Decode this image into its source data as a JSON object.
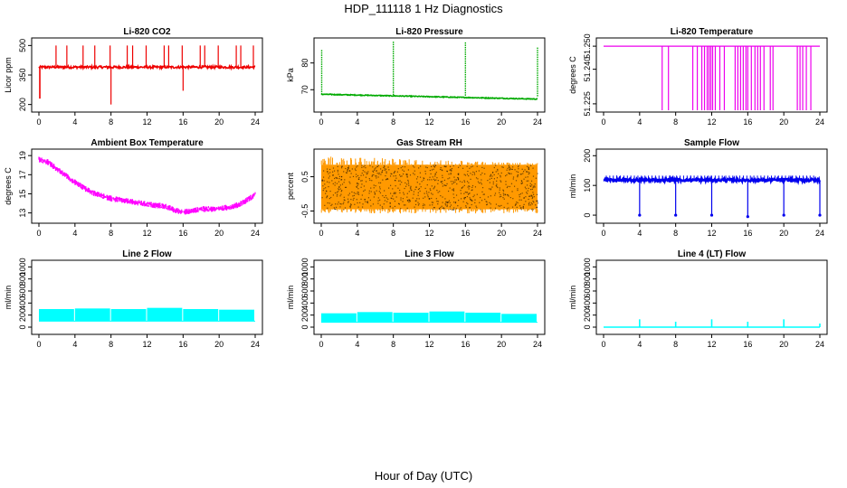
{
  "title": "HDP_111118  1 Hz Diagnostics",
  "xlabel": "Hour of Day (UTC)",
  "chart_data": [
    {
      "type": "line",
      "title": "Li-820 CO2",
      "ylabel": "Licor ppm",
      "color": "#ee0000",
      "xlim": [
        0,
        24
      ],
      "ylim": [
        180,
        520
      ],
      "xticks": [
        0,
        4,
        8,
        12,
        16,
        20,
        24
      ],
      "yticks": [
        200,
        350,
        500
      ],
      "baseline": 390,
      "noise": 6,
      "spikes": [
        [
          1.9,
          500
        ],
        [
          3.1,
          500
        ],
        [
          4.9,
          500
        ],
        [
          6.2,
          500
        ],
        [
          7.9,
          500
        ],
        [
          9.8,
          500
        ],
        [
          10.4,
          500
        ],
        [
          11.9,
          500
        ],
        [
          13.9,
          500
        ],
        [
          14.4,
          500
        ],
        [
          15.9,
          500
        ],
        [
          17.9,
          500
        ],
        [
          18.4,
          500
        ],
        [
          19.9,
          500
        ],
        [
          21.9,
          500
        ],
        [
          22.4,
          500
        ],
        [
          23.8,
          500
        ],
        [
          8.0,
          200
        ],
        [
          16.0,
          270
        ]
      ],
      "start_dip": [
        0.1,
        230
      ]
    },
    {
      "type": "line",
      "title": "Li-820 Pressure",
      "ylabel": "kPa",
      "color": "#00aa00",
      "xlim": [
        0,
        24
      ],
      "ylim": [
        63,
        88
      ],
      "xticks": [
        0,
        4,
        8,
        12,
        16,
        20,
        24
      ],
      "yticks": [
        70,
        80
      ],
      "start": 68.3,
      "end": 66.5,
      "noise": 0.15,
      "spikes": [
        [
          0.05,
          85
        ],
        [
          8.0,
          88
        ],
        [
          16.0,
          88
        ],
        [
          24.0,
          86
        ]
      ]
    },
    {
      "type": "line",
      "title": "Li-820 Temperature",
      "ylabel": "degrees C",
      "color": "#ee00ee",
      "xlim": [
        0,
        24
      ],
      "ylim": [
        51.223,
        51.252
      ],
      "xticks": [
        0,
        4,
        8,
        12,
        16,
        20,
        24
      ],
      "yticks": [
        51.225,
        51.24,
        51.25
      ],
      "ytick_labels": [
        "51.225",
        "51.240",
        "51.250"
      ],
      "baseline": 51.25,
      "drops": [
        6.5,
        7.2,
        9.9,
        10.4,
        10.9,
        11.2,
        11.5,
        11.7,
        11.9,
        12.1,
        12.4,
        12.9,
        13.4,
        14.6,
        14.9,
        15.2,
        15.5,
        15.8,
        16.0,
        16.4,
        16.8,
        17.1,
        17.4,
        17.8,
        18.5,
        18.8,
        21.5,
        21.8,
        22.1,
        22.5,
        23.0
      ]
    },
    {
      "type": "line",
      "title": "Ambient Box Temperature",
      "ylabel": "degrees C",
      "color": "#ff00ff",
      "xlim": [
        0,
        24
      ],
      "ylim": [
        12.3,
        19.3
      ],
      "xticks": [
        0,
        4,
        8,
        12,
        16,
        20,
        24
      ],
      "yticks": [
        13,
        15,
        17,
        19
      ],
      "curve": [
        [
          0,
          18.6
        ],
        [
          1,
          18.3
        ],
        [
          2,
          17.6
        ],
        [
          3,
          16.9
        ],
        [
          4,
          16.2
        ],
        [
          5,
          15.6
        ],
        [
          6,
          15.1
        ],
        [
          7,
          14.8
        ],
        [
          8,
          14.5
        ],
        [
          10,
          14.2
        ],
        [
          12,
          13.9
        ],
        [
          14,
          13.7
        ],
        [
          15,
          13.3
        ],
        [
          16,
          13.1
        ],
        [
          17,
          13.2
        ],
        [
          18,
          13.4
        ],
        [
          20,
          13.4
        ],
        [
          22,
          13.8
        ],
        [
          23,
          14.3
        ],
        [
          24,
          14.9
        ]
      ],
      "band": 0.45
    },
    {
      "type": "scatter",
      "title": "Gas Stream RH",
      "ylabel": "percent",
      "color": "#ff9900",
      "accent": "#000000",
      "xlim": [
        0,
        24
      ],
      "ylim": [
        -0.75,
        1.2
      ],
      "xticks": [
        0,
        4,
        8,
        12,
        16,
        20,
        24
      ],
      "yticks": [
        -0.5,
        0.5
      ],
      "ytick_labels": [
        "-0.5",
        "0.5"
      ],
      "low": -0.45,
      "high": 0.85
    },
    {
      "type": "line",
      "title": "Sample Flow",
      "ylabel": "ml/min",
      "color": "#0000ee",
      "xlim": [
        0,
        24
      ],
      "ylim": [
        -15,
        210
      ],
      "xticks": [
        0,
        4,
        8,
        12,
        16,
        20,
        24
      ],
      "yticks": [
        0,
        100,
        200
      ],
      "baseline": 118,
      "noise": 5,
      "drops": [
        [
          4.0,
          0
        ],
        [
          8.0,
          0
        ],
        [
          12.0,
          0
        ],
        [
          16.0,
          -5
        ],
        [
          20.0,
          0
        ],
        [
          24.0,
          0
        ]
      ]
    },
    {
      "type": "area",
      "title": "Line 2 Flow",
      "ylabel": "ml/min",
      "color": "#00ffff",
      "xlim": [
        0,
        24
      ],
      "ylim": [
        -60,
        1050
      ],
      "xticks": [
        0,
        4,
        8,
        12,
        16,
        20,
        24
      ],
      "yticks": [
        0,
        200,
        400,
        600,
        800,
        1000
      ],
      "low": 100,
      "segments": [
        [
          0,
          4,
          300
        ],
        [
          4,
          8,
          310
        ],
        [
          8,
          12,
          300
        ],
        [
          12,
          16,
          320
        ],
        [
          16,
          20,
          300
        ],
        [
          20,
          24,
          290
        ]
      ]
    },
    {
      "type": "area",
      "title": "Line 3 Flow",
      "ylabel": "ml/min",
      "color": "#00ffff",
      "xlim": [
        0,
        24
      ],
      "ylim": [
        -60,
        1050
      ],
      "xticks": [
        0,
        4,
        8,
        12,
        16,
        20,
        24
      ],
      "yticks": [
        0,
        200,
        400,
        600,
        800,
        1000
      ],
      "low": 80,
      "segments": [
        [
          0,
          4,
          230
        ],
        [
          4,
          8,
          250
        ],
        [
          8,
          12,
          240
        ],
        [
          12,
          16,
          260
        ],
        [
          16,
          20,
          240
        ],
        [
          20,
          24,
          220
        ]
      ]
    },
    {
      "type": "line",
      "title": "Line 4 (LT) Flow",
      "ylabel": "ml/min",
      "color": "#00ffff",
      "xlim": [
        0,
        24
      ],
      "ylim": [
        -60,
        1050
      ],
      "xticks": [
        0,
        4,
        8,
        12,
        16,
        20,
        24
      ],
      "yticks": [
        0,
        200,
        400,
        600,
        800,
        1000
      ],
      "baseline": 0,
      "spikes": [
        [
          4.0,
          130
        ],
        [
          8.0,
          90
        ],
        [
          12.0,
          130
        ],
        [
          16.0,
          90
        ],
        [
          20.0,
          130
        ],
        [
          24.0,
          60
        ]
      ]
    }
  ]
}
